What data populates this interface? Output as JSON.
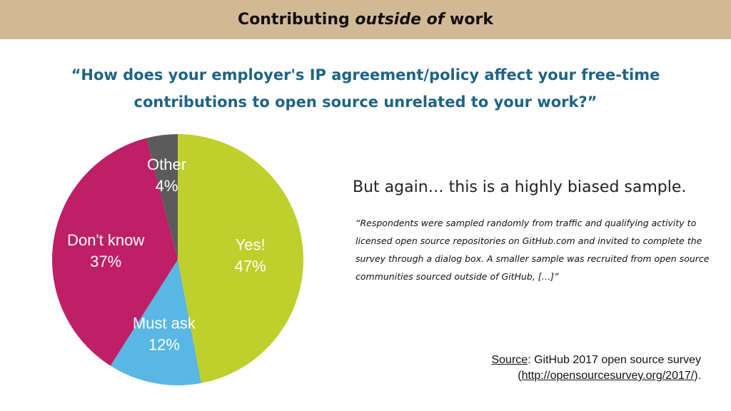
{
  "header": {
    "title_start": "Contributing ",
    "title_emph": "outside of",
    "title_end": " work"
  },
  "question": "“How does your employer's IP agreement/policy affect your free-time contributions to open source unrelated to your work?”",
  "note": {
    "headline": "But again… this is a highly biased sample.",
    "quote": "“Respondents were sampled randomly from traffic and qualifying activity to licensed open source repositories on GitHub.com and invited to complete the survey through a dialog box. A smaller sample was recruited from open source communities sourced outside of GitHub, […]”"
  },
  "source": {
    "label": "Source",
    "text": ": GitHub 2017 open source survey",
    "link_open": "(",
    "link": "http://opensourcesurvey.org/2017/",
    "link_close": ")."
  },
  "chart_data": {
    "type": "pie",
    "title": "“How does your employer's IP agreement/policy affect your free-time contributions to open source unrelated to your work?”",
    "slices": [
      {
        "name": "Yes!",
        "value": 47,
        "label": "47%",
        "color": "#bfcf2b"
      },
      {
        "name": "Must ask",
        "value": 12,
        "label": "12%",
        "color": "#5ab6e2"
      },
      {
        "name": "Don't know",
        "value": 37,
        "label": "37%",
        "color": "#be1f66"
      },
      {
        "name": "Other",
        "value": 4,
        "label": "4%",
        "color": "#5b5b5b"
      }
    ]
  }
}
